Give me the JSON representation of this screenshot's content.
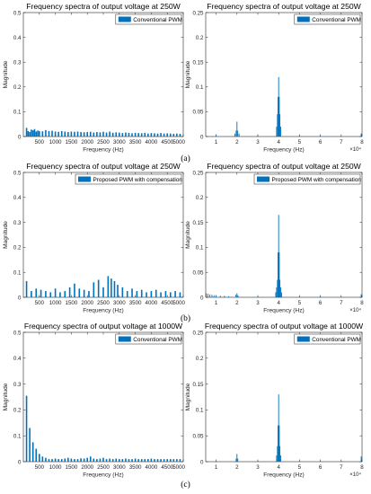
{
  "row_labels": [
    "(a)",
    "(b)",
    "(c)"
  ],
  "chart_data": [
    {
      "type": "bar",
      "title": "Frequency spectra of output voltage at 250W",
      "xlabel": "Frequency (Hz)",
      "ylabel": "Magnitude",
      "xlim": [
        0,
        5000
      ],
      "ylim": [
        0,
        0.5
      ],
      "xticks": [
        "500",
        "1000",
        "1500",
        "2000",
        "2500",
        "3000",
        "3500",
        "4000",
        "4500",
        "5000"
      ],
      "yticks": [
        "0",
        "0.1",
        "0.2",
        "0.3",
        "0.4",
        "0.5"
      ],
      "legend": "Conventional PWM",
      "legend_position": "top-right",
      "series": [
        {
          "name": "Conventional PWM",
          "color": "#0072BD",
          "x": [
            100,
            150,
            200,
            250,
            300,
            350,
            400,
            450,
            500,
            600,
            700,
            800,
            900,
            1000,
            1100,
            1200,
            1300,
            1400,
            1500,
            1600,
            1700,
            1800,
            1900,
            2000,
            2100,
            2200,
            2300,
            2400,
            2500,
            2600,
            2700,
            2800,
            2900,
            3000,
            3100,
            3200,
            3300,
            3400,
            3500,
            3600,
            3700,
            3800,
            3900,
            4000,
            4100,
            4200,
            4300,
            4400,
            4500,
            4600,
            4700,
            4800,
            4900
          ],
          "values": [
            0.035,
            0.022,
            0.018,
            0.028,
            0.025,
            0.03,
            0.02,
            0.024,
            0.022,
            0.021,
            0.026,
            0.022,
            0.023,
            0.02,
            0.019,
            0.022,
            0.02,
            0.018,
            0.02,
            0.019,
            0.02,
            0.018,
            0.017,
            0.018,
            0.019,
            0.016,
            0.018,
            0.017,
            0.019,
            0.016,
            0.02,
            0.015,
            0.017,
            0.016,
            0.014,
            0.016,
            0.015,
            0.013,
            0.015,
            0.014,
            0.013,
            0.015,
            0.012,
            0.014,
            0.013,
            0.012,
            0.014,
            0.012,
            0.013,
            0.012,
            0.011,
            0.012,
            0.011
          ]
        }
      ]
    },
    {
      "type": "bar",
      "title": "Frequency spectra of output voltage at 250W",
      "xlabel": "Frequency (Hz)",
      "ylabel": "Magnitude",
      "xlim": [
        5000,
        80000
      ],
      "ylim": [
        0,
        0.25
      ],
      "xticks": [
        "1",
        "2",
        "3",
        "4",
        "5",
        "6",
        "7",
        "8"
      ],
      "yticks": [
        "0",
        "0.05",
        "0.1",
        "0.15",
        "0.2",
        "0.25"
      ],
      "xexponent": "×10⁴",
      "legend": "Conventional PWM",
      "legend_position": "top-right",
      "series": [
        {
          "name": "Conventional PWM",
          "color": "#0072BD",
          "x": [
            10000,
            19000,
            19600,
            20000,
            20400,
            21000,
            30000,
            39000,
            39400,
            39700,
            40000,
            40300,
            40600,
            41000,
            50000,
            60000,
            70000,
            79600
          ],
          "values": [
            0.004,
            0.006,
            0.012,
            0.03,
            0.012,
            0.006,
            0.003,
            0.02,
            0.045,
            0.08,
            0.12,
            0.08,
            0.045,
            0.02,
            0.003,
            0.003,
            0.002,
            0.006
          ]
        }
      ]
    },
    {
      "type": "bar",
      "title": "Frequency spectra of output voltage at 250W",
      "xlabel": "Frequency (Hz)",
      "ylabel": "Magnitude",
      "xlim": [
        0,
        5000
      ],
      "ylim": [
        0,
        0.5
      ],
      "xticks": [
        "500",
        "1000",
        "1500",
        "2000",
        "2500",
        "3000",
        "3500",
        "4000",
        "4500",
        "5000"
      ],
      "yticks": [
        "0",
        "0.1",
        "0.2",
        "0.3",
        "0.4",
        "0.5"
      ],
      "legend": "Proposed PWM with compensation",
      "legend_position": "top-right",
      "series": [
        {
          "name": "Proposed PWM with compensation",
          "color": "#0072BD",
          "x": [
            100,
            250,
            400,
            550,
            700,
            850,
            1000,
            1150,
            1300,
            1450,
            1600,
            1750,
            1900,
            2050,
            2200,
            2350,
            2500,
            2650,
            2750,
            2850,
            2950,
            3100,
            3250,
            3400,
            3550,
            3700,
            3850,
            4000,
            4150,
            4300,
            4450,
            4600,
            4750,
            4900
          ],
          "values": [
            0.065,
            0.025,
            0.035,
            0.03,
            0.025,
            0.02,
            0.035,
            0.02,
            0.025,
            0.04,
            0.055,
            0.035,
            0.03,
            0.025,
            0.06,
            0.07,
            0.04,
            0.085,
            0.075,
            0.065,
            0.05,
            0.04,
            0.025,
            0.035,
            0.025,
            0.03,
            0.02,
            0.025,
            0.03,
            0.02,
            0.025,
            0.02,
            0.025,
            0.02
          ]
        }
      ]
    },
    {
      "type": "bar",
      "title": "Frequency spectra of output voltage at 250W",
      "xlabel": "Frequency (Hz)",
      "ylabel": "Magnitude",
      "xlim": [
        5000,
        80000
      ],
      "ylim": [
        0,
        0.25
      ],
      "xticks": [
        "1",
        "2",
        "3",
        "4",
        "5",
        "6",
        "7",
        "8"
      ],
      "yticks": [
        "0",
        "0.05",
        "0.1",
        "0.15",
        "0.2",
        "0.25"
      ],
      "xexponent": "×10⁴",
      "legend": "Proposed PWM with compensation",
      "legend_position": "top-right",
      "series": [
        {
          "name": "Proposed PWM with compensation",
          "color": "#0072BD",
          "x": [
            5200,
            6000,
            7000,
            8000,
            9000,
            10000,
            12000,
            14000,
            16000,
            19500,
            20000,
            20500,
            30000,
            38600,
            39000,
            39400,
            39700,
            40000,
            40300,
            40600,
            41000,
            41400,
            50000,
            60000,
            70000,
            79600
          ],
          "values": [
            0.008,
            0.007,
            0.006,
            0.005,
            0.004,
            0.004,
            0.003,
            0.003,
            0.002,
            0.005,
            0.008,
            0.004,
            0.002,
            0.01,
            0.02,
            0.035,
            0.09,
            0.165,
            0.09,
            0.035,
            0.02,
            0.01,
            0.002,
            0.002,
            0.002,
            0.006
          ]
        }
      ]
    },
    {
      "type": "bar",
      "title": "Frequency spectra of output voltage at 1000W",
      "xlabel": "Frequency (Hz)",
      "ylabel": "Magnitude",
      "xlim": [
        0,
        5000
      ],
      "ylim": [
        0,
        0.5
      ],
      "xticks": [
        "500",
        "1000",
        "1500",
        "2000",
        "2500",
        "3000",
        "3500",
        "4000",
        "4500",
        "5000"
      ],
      "yticks": [
        "0",
        "0.1",
        "0.2",
        "0.3",
        "0.4",
        "0.5"
      ],
      "legend": "Conventional PWM",
      "legend_position": "top-right",
      "series": [
        {
          "name": "Conventional PWM",
          "color": "#0072BD",
          "x": [
            100,
            200,
            300,
            400,
            500,
            600,
            700,
            800,
            900,
            1000,
            1100,
            1200,
            1300,
            1400,
            1500,
            1600,
            1700,
            1800,
            1900,
            2000,
            2100,
            2200,
            2300,
            2400,
            2500,
            2600,
            2700,
            2800,
            2900,
            3000,
            3100,
            3200,
            3300,
            3400,
            3500,
            3600,
            3700,
            3800,
            3900,
            4000,
            4100,
            4200,
            4300,
            4400,
            4500,
            4600,
            4700,
            4800,
            4900
          ],
          "values": [
            0.255,
            0.13,
            0.075,
            0.05,
            0.03,
            0.02,
            0.015,
            0.01,
            0.01,
            0.012,
            0.01,
            0.01,
            0.012,
            0.015,
            0.012,
            0.01,
            0.01,
            0.013,
            0.012,
            0.015,
            0.02,
            0.012,
            0.01,
            0.012,
            0.015,
            0.01,
            0.012,
            0.01,
            0.012,
            0.01,
            0.01,
            0.012,
            0.01,
            0.01,
            0.012,
            0.01,
            0.01,
            0.01,
            0.01,
            0.012,
            0.01,
            0.01,
            0.01,
            0.01,
            0.01,
            0.01,
            0.01,
            0.01,
            0.01
          ]
        }
      ]
    },
    {
      "type": "bar",
      "title": "Frequency spectra of output voltage at 1000W",
      "xlabel": "Frequency (Hz)",
      "ylabel": "Magnitude",
      "xlim": [
        5000,
        80000
      ],
      "ylim": [
        0,
        0.25
      ],
      "xticks": [
        "1",
        "2",
        "3",
        "4",
        "5",
        "6",
        "7",
        "8"
      ],
      "yticks": [
        "0",
        "0.05",
        "0.1",
        "0.15",
        "0.2",
        "0.25"
      ],
      "xexponent": "×10⁴",
      "legend": "Conventional PWM",
      "legend_position": "top-right",
      "series": [
        {
          "name": "Conventional PWM",
          "color": "#0072BD",
          "x": [
            10000,
            19600,
            20000,
            20400,
            30000,
            39000,
            39400,
            39700,
            40000,
            40300,
            40600,
            41000,
            50000,
            60000,
            70000,
            79600
          ],
          "values": [
            0.002,
            0.006,
            0.015,
            0.006,
            0.002,
            0.012,
            0.03,
            0.07,
            0.13,
            0.07,
            0.03,
            0.012,
            0.002,
            0.002,
            0.002,
            0.01
          ]
        }
      ]
    }
  ]
}
